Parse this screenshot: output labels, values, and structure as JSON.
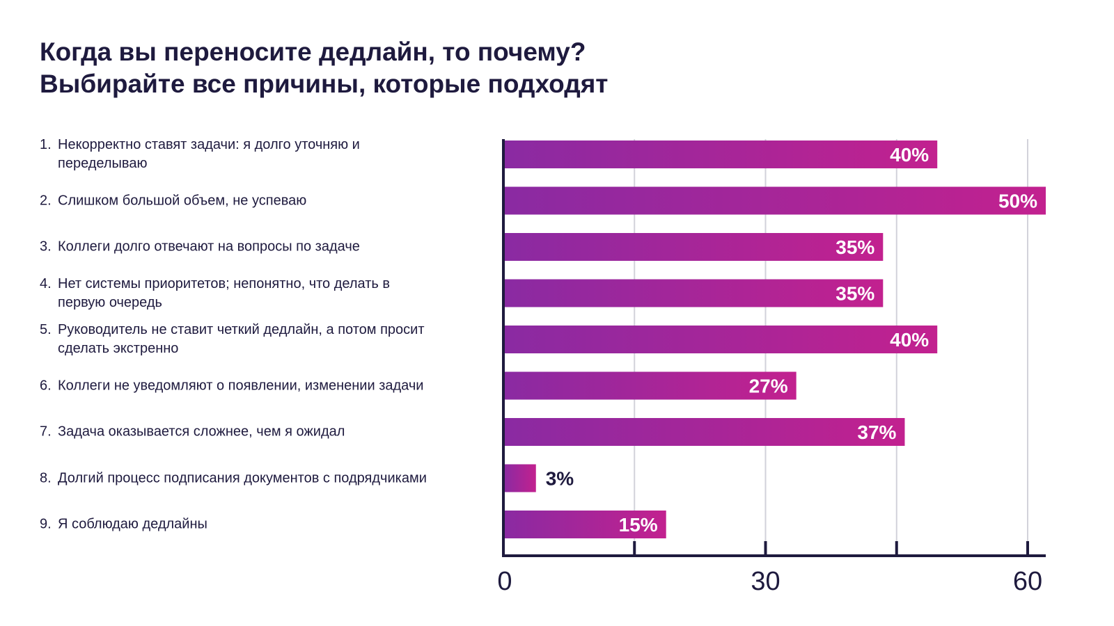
{
  "title": {
    "line1": "Когда вы переносите дедлайн, то почему?",
    "line2": "Выбирайте все причины, которые подходят"
  },
  "chart_data": {
    "type": "bar",
    "orientation": "horizontal",
    "title": "Когда вы переносите дедлайн, то почему? Выбирайте все причины, которые подходят",
    "categories": [
      {
        "num": "1.",
        "text": "Некорректно ставят задачи: я долго уточняю и переделываю"
      },
      {
        "num": "2.",
        "text": "Слишком большой объем, не успеваю"
      },
      {
        "num": "3.",
        "text": "Коллеги долго отвечают на вопросы по задаче"
      },
      {
        "num": "4.",
        "text": "Нет системы приоритетов; непонятно, что делать в первую очередь"
      },
      {
        "num": "5.",
        "text": "Руководитель не ставит четкий дедлайн, а потом просит сделать экстренно"
      },
      {
        "num": "6.",
        "text": "Коллеги не уведомляют о появлении, изменении задачи"
      },
      {
        "num": "7.",
        "text": "Задача оказывается сложнее, чем я ожидал"
      },
      {
        "num": "8.",
        "text": "Долгий процесс подписания документов с подрядчиками"
      },
      {
        "num": "9.",
        "text": "Я соблюдаю дедлайны"
      }
    ],
    "values": [
      40,
      50,
      35,
      35,
      40,
      27,
      37,
      3,
      15
    ],
    "data_labels": [
      "40%",
      "50%",
      "35%",
      "35%",
      "40%",
      "27%",
      "37%",
      "3%",
      "15%"
    ],
    "xaxis": {
      "tick_labels": [
        "0",
        "30",
        "60"
      ],
      "ticks": [
        0,
        15,
        30,
        45,
        60
      ],
      "range": [
        0,
        60
      ]
    },
    "grid": true,
    "colors": {
      "bar_start": "#8a2aa2",
      "bar_end": "#c2218f",
      "axis": "#1e1a3e",
      "grid": "#d2d2da",
      "label_inside": "#ffffff",
      "label_outside": "#1e1a3e"
    }
  }
}
